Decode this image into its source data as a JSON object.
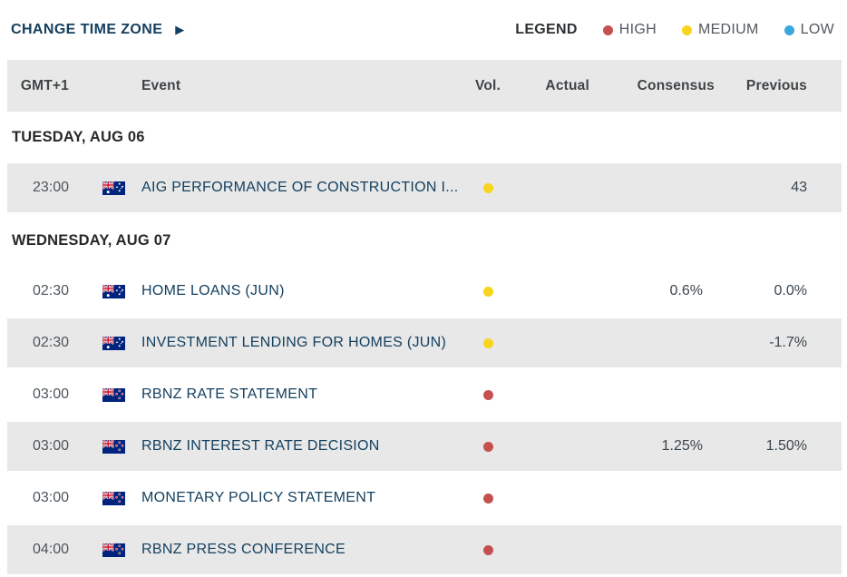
{
  "toolbar": {
    "change_time_zone_label": "CHANGE TIME ZONE",
    "arrow_icon": "▶"
  },
  "legend": {
    "title": "LEGEND",
    "items": [
      {
        "label": "HIGH",
        "level": "high",
        "color": "#c5504e"
      },
      {
        "label": "MEDIUM",
        "level": "medium",
        "color": "#f8d41c"
      },
      {
        "label": "LOW",
        "level": "low",
        "color": "#39a9dc"
      }
    ]
  },
  "table": {
    "headers": {
      "time": "GMT+1",
      "event": "Event",
      "vol": "Vol.",
      "actual": "Actual",
      "consensus": "Consensus",
      "previous": "Previous"
    },
    "vol_colors": {
      "high": "#c5504e",
      "medium": "#f8d41c",
      "low": "#39a9dc"
    },
    "sections": [
      {
        "title": "TUESDAY, AUG 06",
        "rows": [
          {
            "time": "23:00",
            "flag": "australia-flag",
            "event": "AIG PERFORMANCE OF CONSTRUCTION I...",
            "vol": "medium",
            "actual": "",
            "consensus": "",
            "previous": "43"
          }
        ]
      },
      {
        "title": "WEDNESDAY, AUG 07",
        "rows": [
          {
            "time": "02:30",
            "flag": "australia-flag",
            "event": "HOME LOANS (JUN)",
            "vol": "medium",
            "actual": "",
            "consensus": "0.6%",
            "previous": "0.0%"
          },
          {
            "time": "02:30",
            "flag": "australia-flag",
            "event": "INVESTMENT LENDING FOR HOMES (JUN)",
            "vol": "medium",
            "actual": "",
            "consensus": "",
            "previous": "-1.7%"
          },
          {
            "time": "03:00",
            "flag": "new-zealand-flag",
            "event": "RBNZ RATE STATEMENT",
            "vol": "high",
            "actual": "",
            "consensus": "",
            "previous": ""
          },
          {
            "time": "03:00",
            "flag": "new-zealand-flag",
            "event": "RBNZ INTEREST RATE DECISION",
            "vol": "high",
            "actual": "",
            "consensus": "1.25%",
            "previous": "1.50%"
          },
          {
            "time": "03:00",
            "flag": "new-zealand-flag",
            "event": "MONETARY POLICY STATEMENT",
            "vol": "high",
            "actual": "",
            "consensus": "",
            "previous": ""
          },
          {
            "time": "04:00",
            "flag": "new-zealand-flag",
            "event": "RBNZ PRESS CONFERENCE",
            "vol": "high",
            "actual": "",
            "consensus": "",
            "previous": ""
          }
        ]
      }
    ]
  }
}
